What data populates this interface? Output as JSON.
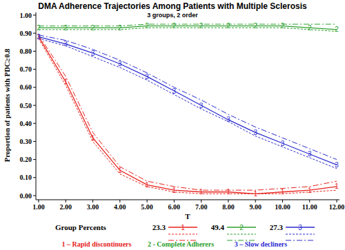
{
  "chart_data": {
    "type": "line",
    "title": "DMA Adherence Trajectories Among Patients with Multiple Sclerosis",
    "subtitle": "3 groups, 2 order",
    "x_label": "T",
    "y_label": "Proportion of patients with PDC≥0.8",
    "x": [
      1,
      2,
      3,
      4,
      5,
      6,
      7,
      8,
      9,
      10,
      11,
      12
    ],
    "xlim": [
      1,
      12
    ],
    "xticks": [
      {
        "value": 1,
        "label": "1.00"
      },
      {
        "value": 2,
        "label": "2.00"
      },
      {
        "value": 3,
        "label": "3.00"
      },
      {
        "value": 4,
        "label": "4.00"
      },
      {
        "value": 5,
        "label": "5.00"
      },
      {
        "value": 6,
        "label": "6.00"
      },
      {
        "value": 7,
        "label": "7.00"
      },
      {
        "value": 8,
        "label": "8.00"
      },
      {
        "value": 9,
        "label": "9.00"
      },
      {
        "value": 10,
        "label": "10.00"
      },
      {
        "value": 11,
        "label": "11.00"
      },
      {
        "value": 12,
        "label": "12.00"
      }
    ],
    "ylim": [
      0,
      1
    ],
    "yticks": [
      {
        "value": 0,
        "label": "0.00"
      },
      {
        "value": 0.1,
        "label": "0.10"
      },
      {
        "value": 0.2,
        "label": "0.20"
      },
      {
        "value": 0.3,
        "label": "0.30"
      },
      {
        "value": 0.4,
        "label": "0.40"
      },
      {
        "value": 0.5,
        "label": "0.50"
      },
      {
        "value": 0.6,
        "label": "0.60"
      },
      {
        "value": 0.7,
        "label": "0.70"
      },
      {
        "value": 0.8,
        "label": "0.80"
      },
      {
        "value": 0.9,
        "label": "0.90"
      },
      {
        "value": 1,
        "label": "1.00"
      }
    ],
    "grid": false,
    "legend": "bottom",
    "legend_title": "Group Percents",
    "series": [
      {
        "name": "23.3",
        "color": "#e8221c",
        "marker": "1",
        "line_style": "solid",
        "values": [
          0.88,
          0.63,
          0.32,
          0.14,
          0.06,
          0.03,
          0.02,
          0.02,
          0.01,
          0.02,
          0.03,
          0.05
        ],
        "lower": [
          0.87,
          0.61,
          0.3,
          0.12,
          0.05,
          0.02,
          0.01,
          0.01,
          0.01,
          0.01,
          0.02,
          0.03
        ],
        "upper": [
          0.89,
          0.66,
          0.35,
          0.16,
          0.08,
          0.05,
          0.03,
          0.03,
          0.03,
          0.04,
          0.05,
          0.08
        ]
      },
      {
        "name": "49.4",
        "color": "#2ca02c",
        "marker": "2",
        "line_style": "solid",
        "values": [
          0.93,
          0.93,
          0.93,
          0.93,
          0.94,
          0.94,
          0.94,
          0.94,
          0.94,
          0.94,
          0.93,
          0.92
        ],
        "lower": [
          0.92,
          0.92,
          0.92,
          0.92,
          0.93,
          0.93,
          0.93,
          0.93,
          0.93,
          0.93,
          0.92,
          0.91
        ],
        "upper": [
          0.94,
          0.94,
          0.94,
          0.94,
          0.95,
          0.95,
          0.95,
          0.95,
          0.95,
          0.95,
          0.95,
          0.95
        ]
      },
      {
        "name": "27.3",
        "color": "#2b2bd0",
        "marker": "3",
        "line_style": "solid",
        "values": [
          0.88,
          0.84,
          0.79,
          0.73,
          0.66,
          0.58,
          0.5,
          0.42,
          0.35,
          0.29,
          0.23,
          0.17
        ],
        "lower": [
          0.87,
          0.83,
          0.77,
          0.71,
          0.64,
          0.56,
          0.48,
          0.41,
          0.33,
          0.27,
          0.21,
          0.15
        ],
        "upper": [
          0.89,
          0.86,
          0.81,
          0.75,
          0.68,
          0.6,
          0.53,
          0.45,
          0.38,
          0.32,
          0.26,
          0.2
        ]
      }
    ],
    "annotations": [
      "1 – Rapid discontinuers",
      "2 - Complete Adherers",
      "3 – Slow decliners"
    ]
  }
}
